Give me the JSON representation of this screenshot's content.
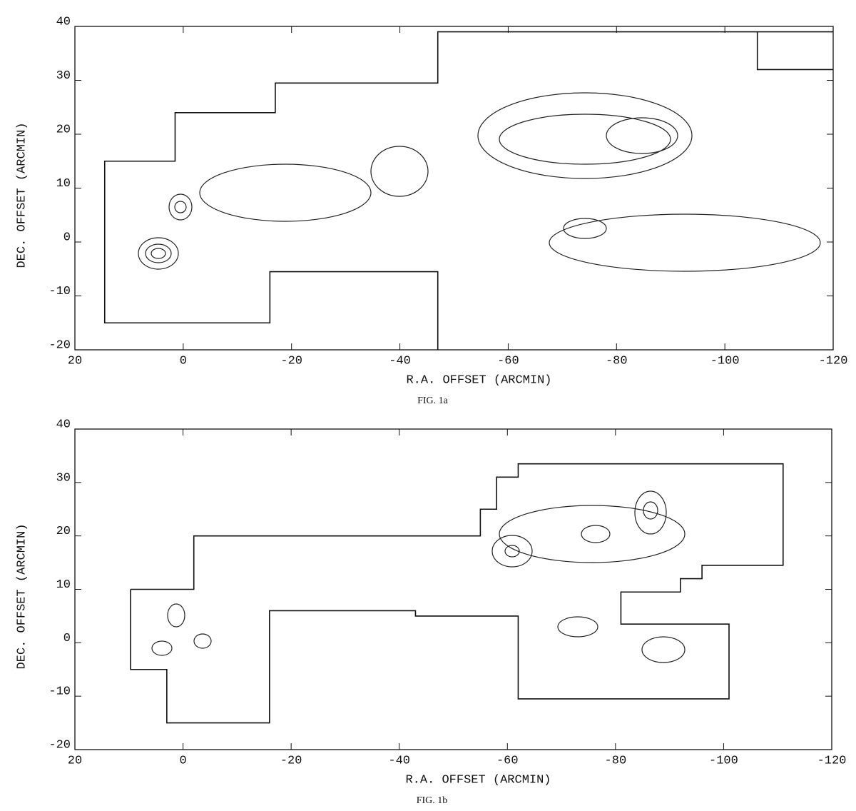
{
  "chart_data": [
    {
      "type": "contour",
      "caption": "FIG. 1a",
      "x_label": "R.A. OFFSET (ARCMIN)",
      "y_label": "DEC. OFFSET (ARCMIN)",
      "xlim": [
        20,
        -120
      ],
      "ylim": [
        -20,
        40
      ],
      "xticks": [
        20,
        0,
        -20,
        -40,
        -60,
        -80,
        -100,
        -120
      ],
      "yticks": [
        -20,
        -10,
        0,
        10,
        20,
        30,
        40
      ],
      "boundaries": [
        {
          "x": [
            -47,
            -47,
            -16,
            -16,
            14.5,
            14.5,
            1.5,
            1.5,
            -17,
            -17,
            -47,
            -47,
            -120
          ],
          "y": [
            -20,
            -5.5,
            -5.5,
            -15,
            -15,
            15,
            15,
            24,
            24,
            29.5,
            29.5,
            39,
            39
          ]
        },
        {
          "x": [
            -106,
            -106,
            -120
          ],
          "y": [
            39,
            32,
            32
          ]
        }
      ]
    },
    {
      "type": "contour",
      "caption": "FIG. 1b",
      "x_label": "R.A. OFFSET (ARCMIN)",
      "y_label": "DEC. OFFSET (ARCMIN)",
      "xlim": [
        20,
        -120
      ],
      "ylim": [
        -20,
        40
      ],
      "xticks": [
        20,
        0,
        -20,
        -40,
        -60,
        -80,
        -100,
        -120
      ],
      "yticks": [
        -20,
        -10,
        0,
        10,
        20,
        30,
        40
      ],
      "boundaries": [
        {
          "x": [
            9.7,
            9.7,
            3,
            3,
            -16,
            -16,
            -43,
            -43,
            -62,
            -62,
            -101,
            -101,
            -81,
            -81,
            -92,
            -92,
            -96,
            -96,
            -111,
            -111,
            -62,
            -62,
            -58,
            -58,
            -55,
            -55,
            -2,
            -2,
            9.7
          ],
          "y": [
            10,
            -5,
            -5,
            -15,
            -15,
            6,
            6,
            5,
            5,
            -10.5,
            -10.5,
            3.5,
            3.5,
            9.5,
            9.5,
            12,
            12,
            14.5,
            14.5,
            33.5,
            33.5,
            31,
            31,
            25,
            25,
            20,
            20,
            10,
            10
          ]
        }
      ]
    }
  ]
}
